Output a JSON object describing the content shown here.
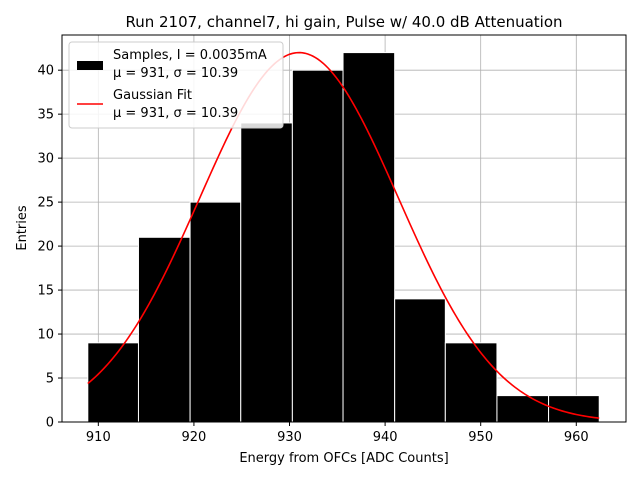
{
  "chart_data": {
    "type": "bar",
    "title": "Run 2107, channel7, hi gain, Pulse w/ 40.0 dB Attenuation",
    "xlabel": "Energy from OFCs [ADC Counts]",
    "ylabel": "Entries",
    "xlim": [
      906.2,
      965.2
    ],
    "ylim": [
      0,
      44
    ],
    "grid": true,
    "legend_position": "top-left",
    "bins": [
      {
        "left": 908.9,
        "right": 914.2,
        "count": 9
      },
      {
        "left": 914.2,
        "right": 919.6,
        "count": 21
      },
      {
        "left": 919.6,
        "right": 924.9,
        "count": 25
      },
      {
        "left": 924.9,
        "right": 930.3,
        "count": 34
      },
      {
        "left": 930.3,
        "right": 935.6,
        "count": 40
      },
      {
        "left": 935.6,
        "right": 941.0,
        "count": 42
      },
      {
        "left": 941.0,
        "right": 946.3,
        "count": 14
      },
      {
        "left": 946.3,
        "right": 951.7,
        "count": 9
      },
      {
        "left": 951.7,
        "right": 957.1,
        "count": 3
      },
      {
        "left": 957.1,
        "right": 962.4,
        "count": 3
      }
    ],
    "fit": {
      "type": "gaussian",
      "mu": 931.0,
      "sigma": 10.39,
      "amplitude": 42.0,
      "x_range": [
        908.9,
        962.4
      ]
    },
    "x_ticks": [
      910,
      920,
      930,
      940,
      950,
      960
    ],
    "y_ticks": [
      0,
      5,
      10,
      15,
      20,
      25,
      30,
      35,
      40
    ],
    "legend": [
      {
        "label_line1": "Samples, I = 0.0035mA",
        "label_line2": "μ = 931, σ = 10.39",
        "color": "#000000",
        "marker": "patch"
      },
      {
        "label_line1": "Gaussian Fit",
        "label_line2": "μ = 931, σ = 10.39",
        "color": "#ff0000",
        "marker": "line"
      }
    ],
    "bar_color": "#000000",
    "bar_edge_color": "#ffffff",
    "fit_color": "#ff0000"
  }
}
